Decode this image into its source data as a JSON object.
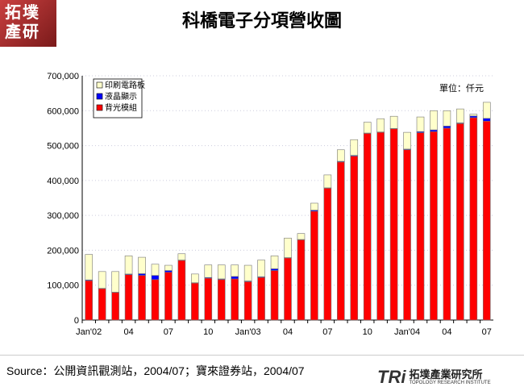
{
  "header": {
    "logo_text": "拓墣產研",
    "title": "科橋電子分項營收圖"
  },
  "footer": {
    "source": "Source：公開資訊觀測站，2004/07；寶來證券站，2004/07",
    "brand_mark": "TRi",
    "brand_name": "拓墣產業研究所",
    "brand_sub": "TOPOLOGY RESEARCH INSTITUTE"
  },
  "chart_data": {
    "type": "bar",
    "stacked": true,
    "title": "科橋電子分項營收圖",
    "unit_label": "單位：仟元",
    "ylim": [
      0,
      700000
    ],
    "yticks": [
      "0",
      "100,000",
      "200,000",
      "300,000",
      "400,000",
      "500,000",
      "600,000",
      "700,000"
    ],
    "xtick_labels": [
      {
        "i": 0,
        "t": "Jan'02"
      },
      {
        "i": 3,
        "t": "04"
      },
      {
        "i": 6,
        "t": "07"
      },
      {
        "i": 9,
        "t": "10"
      },
      {
        "i": 12,
        "t": "Jan'03"
      },
      {
        "i": 15,
        "t": "04"
      },
      {
        "i": 18,
        "t": "07"
      },
      {
        "i": 21,
        "t": "10"
      },
      {
        "i": 24,
        "t": "Jan'04"
      },
      {
        "i": 27,
        "t": "04"
      },
      {
        "i": 30,
        "t": "07"
      }
    ],
    "legend_position": "top-left",
    "categories": [
      "2002/01",
      "2002/02",
      "2002/03",
      "2002/04",
      "2002/05",
      "2002/06",
      "2002/07",
      "2002/08",
      "2002/09",
      "2002/10",
      "2002/11",
      "2002/12",
      "2003/01",
      "2003/02",
      "2003/03",
      "2003/04",
      "2003/05",
      "2003/06",
      "2003/07",
      "2003/08",
      "2003/09",
      "2003/10",
      "2003/11",
      "2003/12",
      "2004/01",
      "2004/02",
      "2004/03",
      "2004/04",
      "2004/05",
      "2004/06",
      "2004/07"
    ],
    "series": [
      {
        "name": "背光模組",
        "color": "#ff0000",
        "values": [
          113000,
          90000,
          79000,
          130000,
          128000,
          116000,
          137000,
          171000,
          106000,
          120000,
          116000,
          118000,
          110000,
          122000,
          142000,
          178000,
          230000,
          312000,
          378000,
          453000,
          470000,
          535000,
          538000,
          548000,
          488000,
          537000,
          540000,
          550000,
          563000,
          580000,
          570000
        ]
      },
      {
        "name": "液晶顯示",
        "color": "#0000ff",
        "values": [
          2000,
          1000,
          1000,
          2000,
          5000,
          12000,
          5000,
          1000,
          1000,
          2000,
          2000,
          7000,
          2000,
          2000,
          5000,
          1000,
          1000,
          3000,
          1000,
          2000,
          2000,
          1000,
          1000,
          1000,
          2000,
          3000,
          5000,
          6000,
          2000,
          5000,
          8000
        ]
      },
      {
        "name": "印刷電路板",
        "color": "#ffffcc",
        "values": [
          73000,
          48000,
          59000,
          52000,
          47000,
          32000,
          15000,
          18000,
          25000,
          36000,
          40000,
          33000,
          45000,
          48000,
          37000,
          56000,
          17000,
          20000,
          37000,
          33000,
          45000,
          31000,
          38000,
          35000,
          48000,
          42000,
          55000,
          44000,
          40000,
          5000,
          46000
        ]
      }
    ]
  }
}
